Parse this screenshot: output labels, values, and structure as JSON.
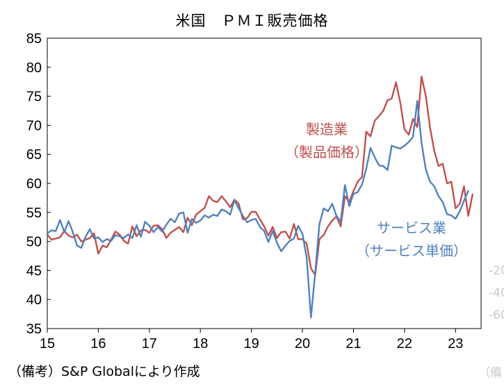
{
  "title": "米国　ＰＭＩ販売価格",
  "note": "（備考）S&P Globalにより作成",
  "chart_data": {
    "type": "line",
    "title": "米国　ＰＭＩ販売価格",
    "xlabel": "",
    "ylabel": "",
    "ylim": [
      35,
      85
    ],
    "yticks": [
      35,
      40,
      45,
      50,
      55,
      60,
      65,
      70,
      75,
      80,
      85
    ],
    "xlim": [
      2015.0,
      2023.5
    ],
    "xticks": [
      {
        "value": 2015.0,
        "label": "15"
      },
      {
        "value": 2016.0,
        "label": "16"
      },
      {
        "value": 2017.0,
        "label": "17"
      },
      {
        "value": 2018.0,
        "label": "18"
      },
      {
        "value": 2019.0,
        "label": "19"
      },
      {
        "value": 2020.0,
        "label": "20"
      },
      {
        "value": 2021.0,
        "label": "21"
      },
      {
        "value": 2022.0,
        "label": "22"
      },
      {
        "value": 2023.0,
        "label": "23"
      }
    ],
    "grid": false,
    "series": [
      {
        "name": "製造業（製品価格）",
        "color": "#c0504d",
        "label_lines": [
          "製造業",
          "（製品価格）"
        ],
        "x_start": 2015.0,
        "values": [
          51.2,
          50.3,
          50.5,
          50.7,
          51.8,
          51.0,
          50.7,
          51.2,
          50.0,
          50.3,
          50.6,
          51.4,
          47.9,
          49.3,
          49.0,
          50.3,
          51.7,
          51.2,
          50.1,
          49.6,
          52.6,
          50.9,
          51.9,
          52.0,
          51.5,
          52.7,
          52.8,
          52.1,
          50.6,
          51.5,
          52.0,
          52.5,
          51.6,
          54.1,
          52.8,
          54.6,
          55.2,
          55.8,
          57.8,
          57.0,
          56.8,
          57.8,
          56.9,
          55.9,
          57.2,
          56.5,
          53.8,
          54.0,
          55.1,
          55.1,
          53.8,
          52.6,
          51.0,
          52.5,
          50.6,
          51.6,
          51.7,
          50.5,
          53.0,
          50.4,
          50.4,
          49.6,
          45.4,
          44.2,
          50.4,
          51.1,
          52.6,
          53.6,
          54.3,
          52.6,
          57.8,
          56.8,
          58.7,
          60.3,
          61.1,
          68.9,
          68.1,
          70.8,
          71.6,
          72.5,
          74.3,
          74.6,
          77.4,
          73.9,
          69.3,
          68.4,
          71.1,
          69.7,
          78.4,
          75.1,
          69.6,
          65.6,
          63.0,
          63.4,
          60.0,
          60.3,
          55.7,
          56.5,
          59.5,
          54.4,
          58.1
        ]
      },
      {
        "name": "サービス業（サービス単価）",
        "color": "#4f81bd",
        "label_lines": [
          "サービス業",
          "（サービス単価）"
        ],
        "x_start": 2015.0,
        "values": [
          51.4,
          51.9,
          51.8,
          53.7,
          51.6,
          53.5,
          51.6,
          49.3,
          48.9,
          50.8,
          52.1,
          50.5,
          50.7,
          49.9,
          50.4,
          50.1,
          51.1,
          50.9,
          50.6,
          51.2,
          50.6,
          52.8,
          50.8,
          53.4,
          52.7,
          51.6,
          52.5,
          51.7,
          52.9,
          53.9,
          53.3,
          54.8,
          55.0,
          51.5,
          53.9,
          53.2,
          53.6,
          54.5,
          54.1,
          54.6,
          54.4,
          55.5,
          55.2,
          54.6,
          57.1,
          55.7,
          54.4,
          53.3,
          53.7,
          53.9,
          52.5,
          51.8,
          49.9,
          51.8,
          49.8,
          48.3,
          49.3,
          50.1,
          50.5,
          52.7,
          51.3,
          47.2,
          36.9,
          44.6,
          53.0,
          55.7,
          55.2,
          56.5,
          54.4,
          53.4,
          59.7,
          56.1,
          58.2,
          58.5,
          59.8,
          62.5,
          66.1,
          64.5,
          63.1,
          63.0,
          62.3,
          66.5,
          66.2,
          66.0,
          66.5,
          67.1,
          68.0,
          74.2,
          67.0,
          62.4,
          60.3,
          59.5,
          57.8,
          56.8,
          54.7,
          54.5,
          53.9,
          55.2,
          57.0,
          58.7
        ]
      }
    ],
    "right_axis_partial_labels": [
      "-20",
      "-40",
      "-60"
    ],
    "right_note_partial": "（備"
  }
}
